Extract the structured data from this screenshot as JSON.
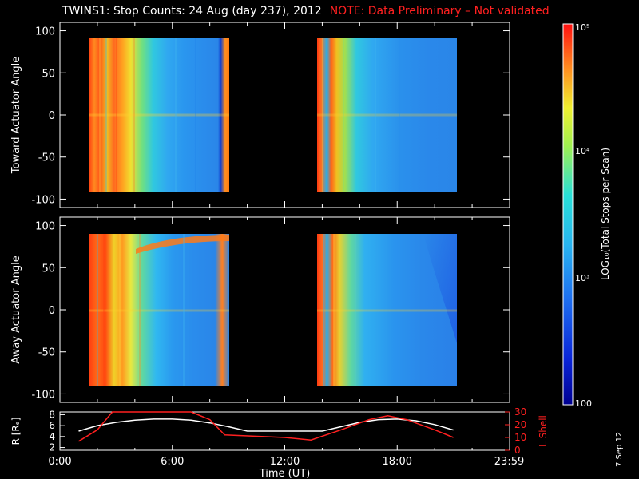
{
  "title": "TWINS1: Stop Counts: 24 Aug (day 237), 2012",
  "note": "NOTE: Data Preliminary – Not validated",
  "date_stamp": "7 Sep 12",
  "colors": {
    "background": "#000000",
    "axes": "#ffffff",
    "note": "#ff2020",
    "r_line": "#ffffff",
    "lshell_line": "#ff2020"
  },
  "chart_data": [
    {
      "type": "heatmap",
      "ylabel": "Toward Actuator Angle",
      "ylim": [
        -110,
        110
      ],
      "yticks": [
        100,
        50,
        0,
        -50,
        -100
      ],
      "xlim": [
        0,
        24
      ],
      "data_intervals_hours": [
        [
          1.0,
          8.8
        ],
        [
          13.4,
          21.2
        ]
      ],
      "y_extent": [
        -90,
        90
      ],
      "value_log10_range": [
        2,
        5
      ]
    },
    {
      "type": "heatmap",
      "ylabel": "Away Actuator Angle",
      "ylim": [
        -110,
        110
      ],
      "yticks": [
        100,
        50,
        0,
        -50,
        -100
      ],
      "xlim": [
        0,
        24
      ],
      "data_intervals_hours": [
        [
          1.0,
          8.8
        ],
        [
          13.4,
          21.2
        ]
      ],
      "y_extent": [
        -90,
        90
      ],
      "value_log10_range": [
        2,
        5
      ]
    },
    {
      "type": "line",
      "xlabel": "Time (UT)",
      "xlim": [
        0,
        24
      ],
      "xtick_labels": [
        "0:00",
        "6:00",
        "12:00",
        "18:00",
        "23:59"
      ],
      "xtick_hours": [
        0,
        6,
        12,
        18,
        23.98
      ],
      "ylabel_left": "R [Rₑ]",
      "ylim_left": [
        1.5,
        8.5
      ],
      "yticks_left": [
        8,
        6,
        4,
        2
      ],
      "ylabel_right": "L Shell",
      "ylim_right": [
        0,
        30
      ],
      "yticks_right": [
        30,
        20,
        10,
        0
      ],
      "series": [
        {
          "name": "R",
          "axis": "left",
          "x": [
            1.0,
            2.0,
            3.0,
            4.0,
            5.0,
            6.0,
            7.0,
            8.0,
            9.0,
            10.0,
            11.0,
            12.0,
            13.0,
            14.0,
            15.0,
            16.0,
            17.0,
            18.0,
            19.0,
            20.0,
            21.0
          ],
          "y": [
            5.0,
            6.0,
            6.6,
            7.0,
            7.2,
            7.2,
            7.0,
            6.5,
            5.8,
            5.0,
            5.0,
            5.0,
            5.0,
            5.0,
            5.8,
            6.6,
            7.1,
            7.2,
            6.9,
            6.2,
            5.2
          ]
        },
        {
          "name": "L Shell",
          "axis": "right",
          "x": [
            1.0,
            2.0,
            2.8,
            7.0,
            8.0,
            8.8,
            12.0,
            13.4,
            15.0,
            16.5,
            17.5,
            18.5,
            20.0,
            21.0
          ],
          "y": [
            7,
            16,
            30,
            30,
            24,
            12,
            10,
            8,
            16,
            24,
            27,
            24,
            16,
            10
          ]
        }
      ]
    }
  ],
  "colorbar": {
    "label": "LOG₁₀(Total Stops per Scan)",
    "tick_labels": [
      "10⁵",
      "10⁴",
      "10³",
      "100"
    ],
    "tick_log_values": [
      5,
      4,
      3,
      2
    ]
  }
}
